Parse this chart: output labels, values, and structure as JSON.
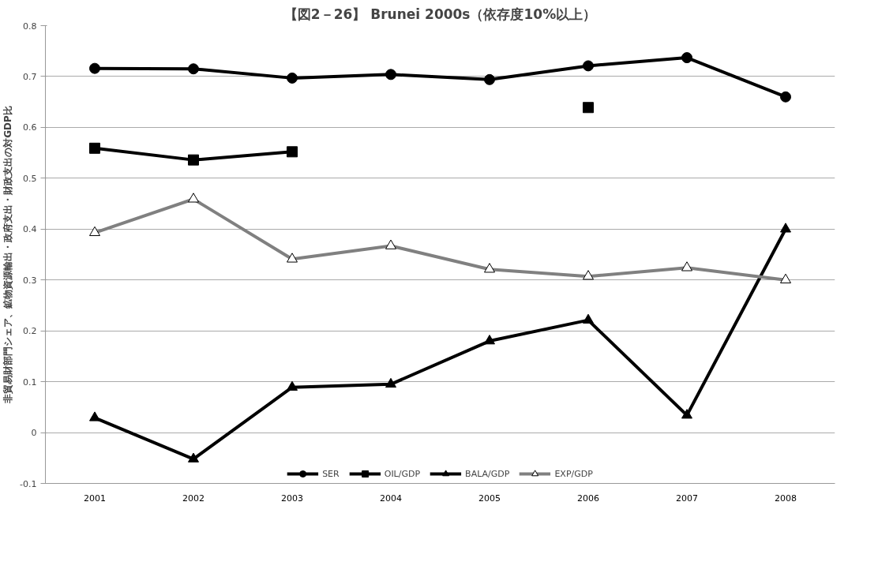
{
  "chart_data": {
    "type": "line",
    "title": "【図2－26】 Brunei 2000s（依存度10%以上）",
    "ylabel": "非貿易財部門シェア、鉱物資源輸出・政府支出・財政支出の対GDP比",
    "categories": [
      "2001",
      "2002",
      "2003",
      "2004",
      "2005",
      "2006",
      "2007",
      "2008"
    ],
    "series": [
      {
        "name": "SER",
        "color": "#000000",
        "marker": "circle",
        "values": [
          0.716,
          0.715,
          0.697,
          0.704,
          0.694,
          0.721,
          0.737,
          0.66
        ]
      },
      {
        "name": "OIL/GDP",
        "color": "#000000",
        "marker": "square",
        "values": [
          0.559,
          0.536,
          0.552,
          null,
          null,
          0.639,
          null,
          null
        ]
      },
      {
        "name": "BALA/GDP",
        "color": "#000000",
        "marker": "triangle",
        "values": [
          0.029,
          -0.052,
          0.089,
          0.095,
          0.18,
          0.221,
          0.034,
          0.4
        ]
      },
      {
        "name": "EXP/GDP",
        "color": "#808080",
        "marker": "triangle",
        "values": [
          0.393,
          0.459,
          0.341,
          0.367,
          0.321,
          0.307,
          0.324,
          0.3
        ]
      }
    ],
    "ylim": [
      -0.1,
      0.8
    ],
    "yticks": [
      -0.1,
      0,
      0.1,
      0.2,
      0.3,
      0.4,
      0.5,
      0.6,
      0.7,
      0.8
    ],
    "grid": "y",
    "legend": "bottom",
    "line_style": "solid"
  }
}
